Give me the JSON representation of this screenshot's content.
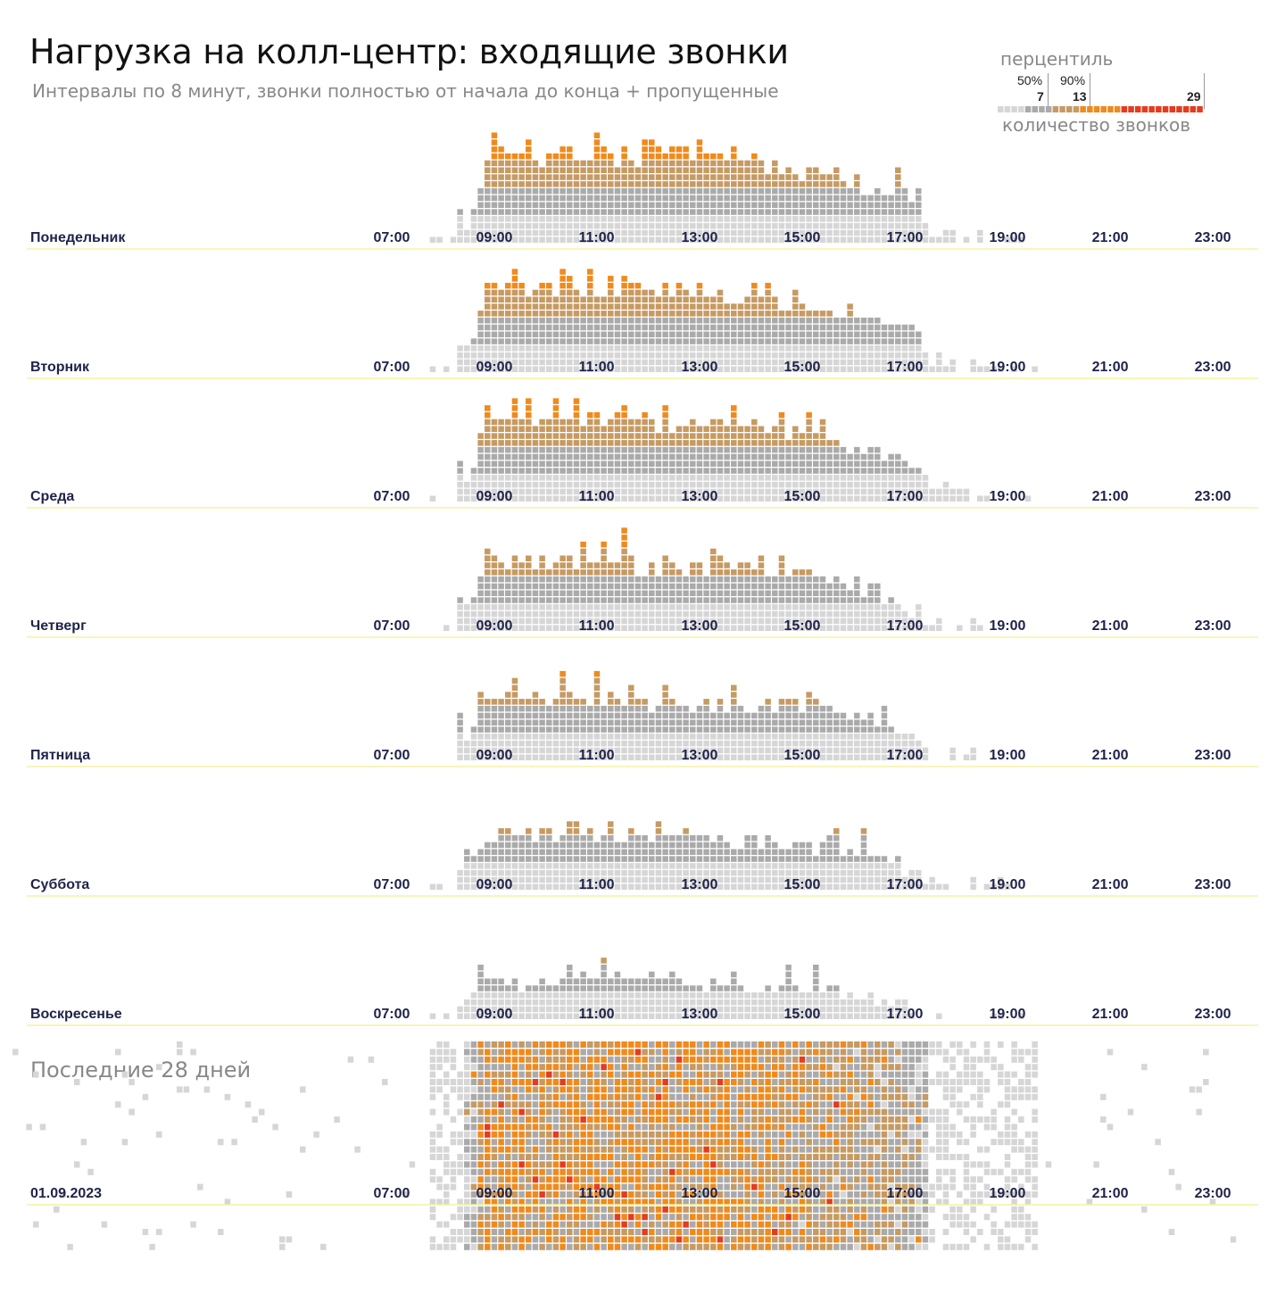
{
  "title": "Нагрузка на колл-центр: входящие звонки",
  "subtitle": "Интервалы по 8 минут, звонки полностью от начала до конца + пропущенные",
  "legend": {
    "title": "перцентиль",
    "caption": "количество звонков",
    "p50_label": "50%",
    "p50_value": "7",
    "p90_label": "90%",
    "p90_value": "13",
    "max_value": "29"
  },
  "daily_label": "Последние 28 дней",
  "colors": {
    "light": "#d6d6d6",
    "mid": "#aaaaaa",
    "tan": "#c69a62",
    "orange": "#f08a1c",
    "red": "#e53b1f",
    "baseline": "#f4f4a0",
    "axis": "#1e2348"
  },
  "chart_data": {
    "type": "heatmap",
    "title": "Нагрузка на колл-центр: входящие звонки",
    "interval_minutes": 8,
    "bins_per_day": 180,
    "hour_ticks": [
      "07:00",
      "09:00",
      "11:00",
      "13:00",
      "15:00",
      "17:00",
      "19:00",
      "21:00",
      "23:00"
    ],
    "color_scale": {
      "p50": 7,
      "p90": 13,
      "max": 29
    },
    "weekdays": [
      {
        "label": "Понедельник",
        "profile": [
          [
            60,
            0
          ],
          [
            64,
            1
          ],
          [
            65,
            2
          ],
          [
            67,
            5
          ],
          [
            69,
            12
          ],
          [
            72,
            13
          ],
          [
            76,
            12
          ],
          [
            82,
            13
          ],
          [
            90,
            12
          ],
          [
            96,
            13
          ],
          [
            103,
            12
          ],
          [
            110,
            11
          ],
          [
            115,
            10
          ],
          [
            120,
            9
          ],
          [
            125,
            8
          ],
          [
            130,
            7
          ],
          [
            132,
            6
          ],
          [
            133,
            4
          ],
          [
            134,
            2
          ],
          [
            140,
            1
          ],
          [
            148,
            0
          ]
        ],
        "peaks": [
          [
            65,
            4
          ],
          [
            70,
            3
          ],
          [
            75,
            2
          ],
          [
            85,
            3
          ],
          [
            93,
            2
          ],
          [
            100,
            2
          ],
          [
            108,
            2
          ],
          [
            117,
            2
          ]
        ]
      },
      {
        "label": "Вторник",
        "profile": [
          [
            60,
            0
          ],
          [
            64,
            1
          ],
          [
            65,
            2
          ],
          [
            67,
            5
          ],
          [
            69,
            12
          ],
          [
            76,
            12
          ],
          [
            86,
            12
          ],
          [
            96,
            12
          ],
          [
            106,
            11
          ],
          [
            114,
            10
          ],
          [
            120,
            9
          ],
          [
            126,
            8
          ],
          [
            130,
            7
          ],
          [
            132,
            5
          ],
          [
            134,
            2
          ],
          [
            140,
            1
          ],
          [
            150,
            0
          ]
        ],
        "peaks": [
          [
            65,
            2
          ],
          [
            73,
            2
          ],
          [
            80,
            3
          ],
          [
            87,
            2
          ],
          [
            100,
            2
          ],
          [
            108,
            2
          ]
        ]
      },
      {
        "label": "Среда",
        "profile": [
          [
            60,
            0
          ],
          [
            64,
            1
          ],
          [
            65,
            2
          ],
          [
            67,
            5
          ],
          [
            69,
            12
          ],
          [
            76,
            12
          ],
          [
            86,
            12
          ],
          [
            96,
            11
          ],
          [
            106,
            11
          ],
          [
            114,
            10
          ],
          [
            120,
            9
          ],
          [
            126,
            7
          ],
          [
            129,
            6
          ],
          [
            132,
            5
          ],
          [
            134,
            2
          ],
          [
            140,
            1
          ],
          [
            150,
            0
          ]
        ],
        "peaks": [
          [
            65,
            3
          ],
          [
            79,
            3
          ],
          [
            82,
            3
          ],
          [
            89,
            2
          ],
          [
            105,
            2
          ]
        ]
      },
      {
        "label": "Четверг",
        "profile": [
          [
            60,
            0
          ],
          [
            64,
            1
          ],
          [
            65,
            2
          ],
          [
            67,
            5
          ],
          [
            69,
            10
          ],
          [
            76,
            10
          ],
          [
            86,
            10
          ],
          [
            96,
            9
          ],
          [
            106,
            9
          ],
          [
            114,
            8
          ],
          [
            122,
            7
          ],
          [
            126,
            6
          ],
          [
            130,
            4
          ],
          [
            132,
            3
          ],
          [
            134,
            1
          ],
          [
            140,
            1
          ],
          [
            148,
            0
          ]
        ],
        "peaks": [
          [
            65,
            4
          ],
          [
            86,
            2
          ],
          [
            89,
            5
          ],
          [
            102,
            2
          ],
          [
            112,
            2
          ],
          [
            116,
            2
          ]
        ]
      },
      {
        "label": "Пятница",
        "profile": [
          [
            60,
            0
          ],
          [
            64,
            1
          ],
          [
            65,
            2
          ],
          [
            67,
            5
          ],
          [
            69,
            9
          ],
          [
            76,
            9
          ],
          [
            86,
            9
          ],
          [
            96,
            8
          ],
          [
            106,
            8
          ],
          [
            114,
            8
          ],
          [
            122,
            7
          ],
          [
            126,
            6
          ],
          [
            130,
            4
          ],
          [
            132,
            2
          ],
          [
            134,
            1
          ],
          [
            140,
            1
          ],
          [
            148,
            0
          ]
        ],
        "peaks": [
          [
            65,
            5
          ],
          [
            73,
            2
          ],
          [
            80,
            2
          ],
          [
            85,
            3
          ],
          [
            95,
            2
          ]
        ]
      },
      {
        "label": "Суббота",
        "profile": [
          [
            60,
            0
          ],
          [
            64,
            1
          ],
          [
            65,
            2
          ],
          [
            67,
            5
          ],
          [
            69,
            8
          ],
          [
            76,
            8
          ],
          [
            86,
            8
          ],
          [
            96,
            8
          ],
          [
            106,
            7
          ],
          [
            114,
            6
          ],
          [
            120,
            6
          ],
          [
            126,
            5
          ],
          [
            130,
            3
          ],
          [
            132,
            2
          ],
          [
            134,
            1
          ],
          [
            140,
            1
          ],
          [
            148,
            0
          ]
        ],
        "peaks": [
          [
            66,
            2
          ],
          [
            82,
            3
          ],
          [
            87,
            3
          ],
          [
            94,
            1
          ]
        ]
      },
      {
        "label": "Воскресенье",
        "profile": [
          [
            60,
            0
          ],
          [
            64,
            1
          ],
          [
            65,
            2
          ],
          [
            67,
            4
          ],
          [
            69,
            5
          ],
          [
            76,
            5
          ],
          [
            86,
            6
          ],
          [
            96,
            5
          ],
          [
            106,
            5
          ],
          [
            114,
            5
          ],
          [
            120,
            4
          ],
          [
            126,
            3
          ],
          [
            130,
            2
          ],
          [
            132,
            1
          ],
          [
            140,
            1
          ],
          [
            148,
            0
          ]
        ],
        "peaks": [
          [
            81,
            2
          ],
          [
            86,
            2
          ],
          [
            90,
            1
          ]
        ]
      }
    ],
    "daily_heatmap": {
      "days": 28,
      "label": "Последние 28 дней",
      "date_label": "01.09.2023"
    }
  }
}
